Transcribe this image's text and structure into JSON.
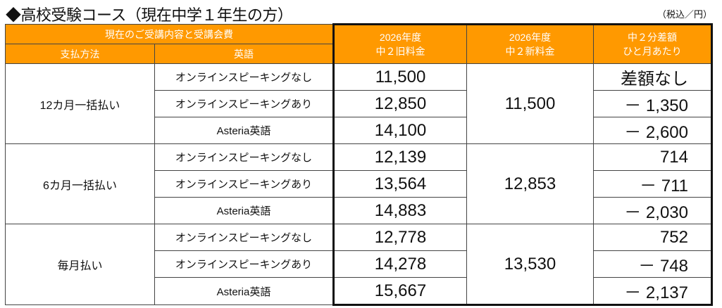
{
  "title": "◆高校受験コース（現在中学１年生の方）",
  "unit": "（税込／円）",
  "header": {
    "group": "現在のご受講内容と受講会費",
    "payment": "支払方法",
    "english": "英語",
    "old": [
      "2026年度",
      "中２旧料金"
    ],
    "new": [
      "2026年度",
      "中２新料金"
    ],
    "diff": [
      "中２分差額",
      "ひと月あたり"
    ]
  },
  "groups": [
    {
      "payment": "12カ月一括払い",
      "new": "11,500",
      "rows": [
        {
          "english": "オンラインスピーキングなし",
          "old": "11,500",
          "diff": "差額なし"
        },
        {
          "english": "オンラインスピーキングあり",
          "old": "12,850",
          "diff": "－ 1,350"
        },
        {
          "english": "Asteria英語",
          "old": "14,100",
          "diff": "－ 2,600"
        }
      ]
    },
    {
      "payment": "6カ月一括払い",
      "new": "12,853",
      "rows": [
        {
          "english": "オンラインスピーキングなし",
          "old": "12,139",
          "diff": "714"
        },
        {
          "english": "オンラインスピーキングあり",
          "old": "13,564",
          "diff": "－ 711"
        },
        {
          "english": "Asteria英語",
          "old": "14,883",
          "diff": "－ 2,030"
        }
      ]
    },
    {
      "payment": "毎月払い",
      "new": "13,530",
      "rows": [
        {
          "english": "オンラインスピーキングなし",
          "old": "12,778",
          "diff": "752"
        },
        {
          "english": "オンラインスピーキングあり",
          "old": "14,278",
          "diff": "－ 748"
        },
        {
          "english": "Asteria英語",
          "old": "15,667",
          "diff": "－ 2,137"
        }
      ]
    }
  ]
}
